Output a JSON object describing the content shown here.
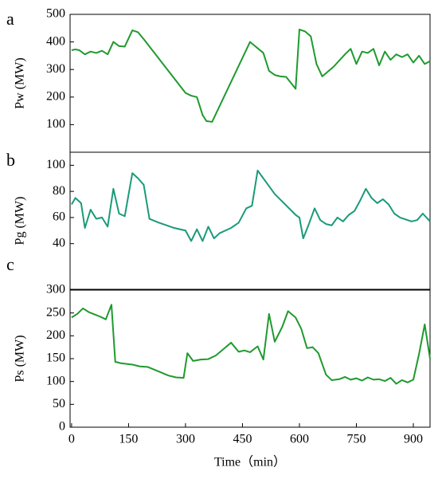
{
  "chart_data": [
    {
      "type": "line",
      "panel_label": "a",
      "ylabel": "Pw (MW)",
      "color": "#1f9a2e",
      "xlim": [
        -4,
        944
      ],
      "ylim": [
        0,
        500
      ],
      "yticks": [
        100,
        200,
        300,
        400,
        500
      ],
      "x": [
        0,
        10,
        20,
        35,
        50,
        65,
        80,
        95,
        110,
        125,
        140,
        160,
        175,
        190,
        300,
        315,
        330,
        345,
        355,
        370,
        470,
        505,
        520,
        535,
        550,
        565,
        590,
        600,
        615,
        630,
        645,
        660,
        690,
        710,
        720,
        735,
        750,
        765,
        780,
        795,
        810,
        825,
        840,
        855,
        870,
        885,
        900,
        915,
        930,
        944
      ],
      "values": [
        370,
        373,
        370,
        355,
        365,
        360,
        368,
        355,
        400,
        385,
        383,
        442,
        435,
        410,
        215,
        205,
        200,
        135,
        113,
        110,
        400,
        360,
        295,
        280,
        275,
        273,
        230,
        445,
        438,
        420,
        320,
        275,
        310,
        340,
        355,
        375,
        320,
        365,
        360,
        375,
        315,
        365,
        335,
        355,
        345,
        355,
        325,
        350,
        320,
        330
      ]
    },
    {
      "type": "line",
      "panel_label": "b",
      "ylabel": "Pg (MW)",
      "color": "#1a9a7a",
      "xlim": [
        -4,
        944
      ],
      "ylim": [
        5,
        110
      ],
      "yticks": [
        40,
        60,
        80,
        100
      ],
      "x": [
        0,
        10,
        25,
        35,
        50,
        65,
        80,
        95,
        110,
        125,
        140,
        160,
        175,
        190,
        205,
        230,
        250,
        270,
        300,
        315,
        330,
        345,
        360,
        375,
        390,
        420,
        440,
        460,
        475,
        490,
        505,
        520,
        535,
        590,
        600,
        610,
        625,
        640,
        655,
        670,
        685,
        700,
        715,
        730,
        745,
        760,
        775,
        790,
        805,
        820,
        835,
        850,
        865,
        895,
        910,
        925,
        944
      ],
      "values": [
        70,
        75,
        71,
        52,
        66,
        59,
        60,
        53,
        82,
        63,
        61,
        94,
        90,
        85,
        59,
        56,
        54,
        52,
        50,
        42,
        51,
        42,
        53,
        44,
        48,
        52,
        56,
        67,
        69,
        96,
        90,
        84,
        78,
        62,
        60,
        44,
        55,
        67,
        58,
        55,
        54,
        60,
        57,
        62,
        65,
        73,
        82,
        75,
        71,
        74,
        70,
        63,
        60,
        57,
        58,
        63,
        57
      ]
    },
    {
      "type": "line",
      "panel_label": "c",
      "ylabel": "Ps (MW)",
      "xlabel": "Time（min）",
      "color": "#1f9a2e",
      "xlim": [
        -4,
        944
      ],
      "ylim": [
        0,
        300
      ],
      "yticks": [
        0,
        50,
        100,
        150,
        200,
        250,
        300
      ],
      "xticks": [
        0,
        150,
        300,
        450,
        600,
        750,
        900
      ],
      "x": [
        0,
        15,
        30,
        45,
        60,
        75,
        90,
        105,
        115,
        130,
        160,
        180,
        200,
        235,
        255,
        275,
        295,
        305,
        320,
        340,
        360,
        380,
        400,
        420,
        440,
        455,
        470,
        490,
        505,
        520,
        535,
        555,
        570,
        590,
        605,
        620,
        635,
        650,
        670,
        685,
        705,
        720,
        735,
        750,
        765,
        780,
        795,
        810,
        825,
        840,
        855,
        870,
        885,
        900,
        915,
        930,
        944
      ],
      "values": [
        240,
        248,
        260,
        252,
        247,
        242,
        236,
        268,
        143,
        140,
        137,
        133,
        132,
        120,
        113,
        109,
        108,
        162,
        145,
        148,
        149,
        157,
        171,
        185,
        165,
        168,
        164,
        177,
        148,
        248,
        187,
        220,
        254,
        240,
        215,
        173,
        175,
        162,
        115,
        103,
        105,
        110,
        104,
        107,
        102,
        109,
        104,
        105,
        101,
        108,
        95,
        103,
        98,
        104,
        160,
        225,
        150
      ]
    }
  ]
}
